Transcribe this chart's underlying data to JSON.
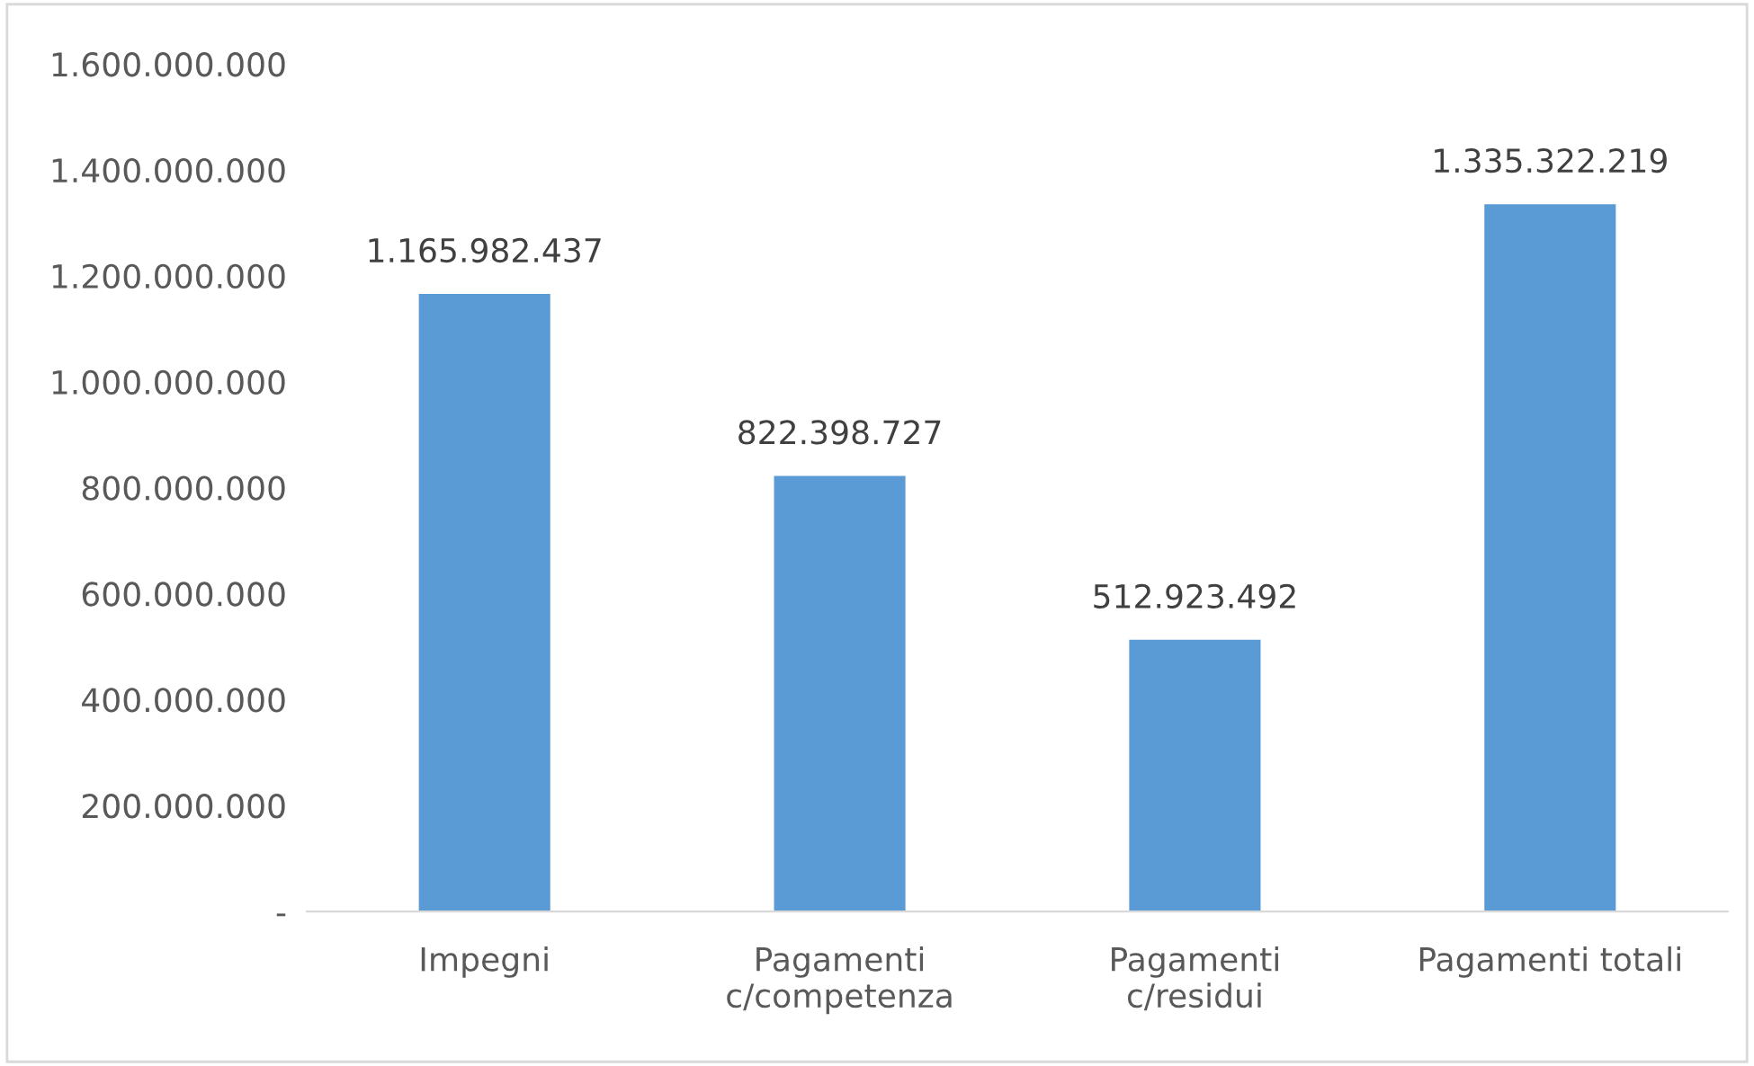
{
  "chart_data": {
    "type": "bar",
    "categories": [
      "Impegni",
      "Pagamenti\nc/competenza",
      "Pagamenti\nc/residui",
      "Pagamenti totali"
    ],
    "values": [
      1165982437,
      822398727,
      512923492,
      1335322219
    ],
    "value_labels": [
      "1.165.982.437",
      "822.398.727",
      "512.923.492",
      "1.335.322.219"
    ],
    "color": "#5b9bd5",
    "ylim": [
      0,
      1600000000
    ],
    "yticks": [
      {
        "value": 0,
        "label": "-"
      },
      {
        "value": 200000000,
        "label": "200.000.000"
      },
      {
        "value": 400000000,
        "label": "400.000.000"
      },
      {
        "value": 600000000,
        "label": "600.000.000"
      },
      {
        "value": 800000000,
        "label": "800.000.000"
      },
      {
        "value": 1000000000,
        "label": "1.000.000.000"
      },
      {
        "value": 1200000000,
        "label": "1.200.000.000"
      },
      {
        "value": 1400000000,
        "label": "1.400.000.000"
      },
      {
        "value": 1600000000,
        "label": "1.600.000.000"
      }
    ],
    "grid": false,
    "legend": false
  }
}
